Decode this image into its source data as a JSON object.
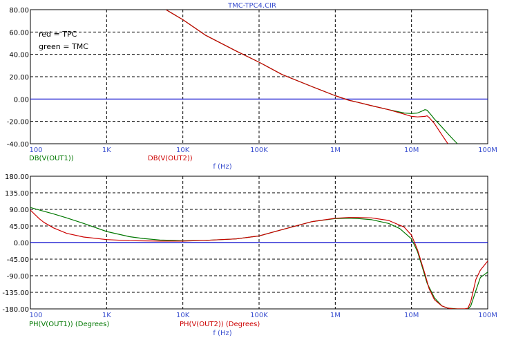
{
  "window_title": "TMC-TPC4.CIR",
  "chart_data": [
    {
      "type": "line",
      "title": "",
      "xlabel": "f (Hz)",
      "ylabel": "",
      "x_scale": "log",
      "xlim": [
        100,
        100000000
      ],
      "ylim": [
        -40,
        80
      ],
      "x_ticks": [
        {
          "value": 100,
          "label": "100"
        },
        {
          "value": 1000,
          "label": "1K"
        },
        {
          "value": 10000,
          "label": "10K"
        },
        {
          "value": 100000,
          "label": "100K"
        },
        {
          "value": 1000000,
          "label": "1M"
        },
        {
          "value": 10000000,
          "label": "10M"
        },
        {
          "value": 100000000,
          "label": "100M"
        }
      ],
      "y_ticks": [
        {
          "value": 80,
          "label": "80.00"
        },
        {
          "value": 60,
          "label": "60.00"
        },
        {
          "value": 40,
          "label": "40.00"
        },
        {
          "value": 20,
          "label": "20.00"
        },
        {
          "value": 0,
          "label": "0.00"
        },
        {
          "value": -20,
          "label": "-20.00"
        },
        {
          "value": -40,
          "label": "-40.00"
        }
      ],
      "grid": true,
      "annotations": [
        "red = TPC",
        "green = TMC"
      ],
      "series": [
        {
          "name": "DB(V(OUT1))",
          "color": "#007700",
          "x": [
            6000,
            10000,
            20000,
            50000,
            100000,
            200000,
            500000,
            1000000,
            1500000,
            2000000,
            3000000,
            5000000,
            8000000,
            10000000,
            12000000,
            14000000,
            15000000,
            16000000,
            18000000,
            20000000,
            25000000,
            30000000,
            35000000,
            40000000
          ],
          "values": [
            80,
            71,
            57,
            43,
            33,
            22,
            11,
            3,
            -1,
            -3,
            -6,
            -9.5,
            -12.5,
            -13,
            -12.5,
            -10.5,
            -9.5,
            -10,
            -14,
            -18,
            -25,
            -31,
            -36,
            -40
          ]
        },
        {
          "name": "DB(V(OUT2))",
          "color": "#cc0000",
          "x": [
            6000,
            10000,
            20000,
            50000,
            100000,
            200000,
            500000,
            1000000,
            1500000,
            2000000,
            3000000,
            5000000,
            8000000,
            10000000,
            12000000,
            15000000,
            16000000,
            17000000,
            20000000,
            25000000,
            30000000
          ],
          "values": [
            80,
            71,
            57,
            43,
            33,
            22,
            11,
            3,
            -1,
            -3,
            -6,
            -9.5,
            -13.5,
            -15.5,
            -16,
            -15.5,
            -15,
            -16.5,
            -22,
            -32,
            -40
          ]
        }
      ]
    },
    {
      "type": "line",
      "title": "",
      "xlabel": "f (Hz)",
      "ylabel": "",
      "x_scale": "log",
      "xlim": [
        100,
        100000000
      ],
      "ylim": [
        -180,
        180
      ],
      "x_ticks": [
        {
          "value": 100,
          "label": "100"
        },
        {
          "value": 1000,
          "label": "1K"
        },
        {
          "value": 10000,
          "label": "10K"
        },
        {
          "value": 100000,
          "label": "100K"
        },
        {
          "value": 1000000,
          "label": "1M"
        },
        {
          "value": 10000000,
          "label": "10M"
        },
        {
          "value": 100000000,
          "label": "100M"
        }
      ],
      "y_ticks": [
        {
          "value": 180,
          "label": "180.00"
        },
        {
          "value": 135,
          "label": "135.00"
        },
        {
          "value": 90,
          "label": "90.00"
        },
        {
          "value": 45,
          "label": "45.00"
        },
        {
          "value": 0,
          "label": "0.00"
        },
        {
          "value": -45,
          "label": "-45.00"
        },
        {
          "value": -90,
          "label": "-90.00"
        },
        {
          "value": -135,
          "label": "-135.00"
        },
        {
          "value": -180,
          "label": "-180.00"
        }
      ],
      "grid": true,
      "series": [
        {
          "name": "PH(V(OUT1)) (Degrees)",
          "color": "#007700",
          "x": [
            100,
            150,
            200,
            300,
            500,
            1000,
            2000,
            3000,
            5000,
            10000,
            20000,
            50000,
            100000,
            200000,
            500000,
            1000000,
            1500000,
            2000000,
            3000000,
            5000000,
            7000000,
            10000000,
            12000000,
            14000000,
            16000000,
            20000000,
            25000000,
            30000000,
            40000000,
            50000000,
            55000000,
            60000000,
            70000000,
            80000000,
            100000000
          ],
          "values": [
            95,
            85,
            78,
            67,
            52,
            30,
            16,
            11,
            7,
            5,
            6,
            10,
            18,
            35,
            57,
            65,
            66,
            65,
            62,
            52,
            38,
            10,
            -25,
            -70,
            -110,
            -150,
            -172,
            -178,
            -180,
            -180,
            -180,
            -172,
            -130,
            -95,
            -80
          ]
        },
        {
          "name": "PH(V(OUT2)) (Degrees)",
          "color": "#cc0000",
          "x": [
            100,
            130,
            150,
            200,
            300,
            500,
            1000,
            2000,
            5000,
            10000,
            20000,
            50000,
            100000,
            200000,
            500000,
            1000000,
            1500000,
            2000000,
            3000000,
            5000000,
            8000000,
            10000000,
            12000000,
            15000000,
            17000000,
            20000000,
            25000000,
            30000000,
            35000000,
            40000000,
            50000000,
            55000000,
            60000000,
            70000000,
            80000000,
            100000000
          ],
          "values": [
            88,
            65,
            55,
            40,
            25,
            15,
            8,
            5,
            4,
            4,
            6,
            10,
            18,
            35,
            57,
            66,
            68,
            68,
            67,
            60,
            42,
            20,
            -20,
            -85,
            -125,
            -155,
            -172,
            -178,
            -180,
            -180,
            -180,
            -178,
            -160,
            -100,
            -75,
            -50
          ]
        }
      ]
    }
  ]
}
